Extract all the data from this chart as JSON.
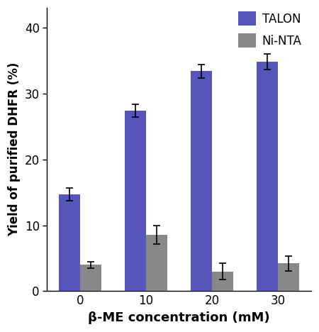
{
  "categories": [
    0,
    10,
    20,
    30
  ],
  "talon_values": [
    14.7,
    27.4,
    33.4,
    34.8
  ],
  "talon_errors": [
    1.0,
    1.0,
    1.0,
    1.2
  ],
  "ninta_values": [
    4.0,
    8.6,
    3.0,
    4.2
  ],
  "ninta_errors": [
    0.5,
    1.4,
    1.2,
    1.1
  ],
  "talon_color": "#5555BB",
  "ninta_color": "#888888",
  "ylabel": "Yield of purified DHFR (%)",
  "xlabel": "β-ME concentration (mM)",
  "ylim": [
    0,
    43
  ],
  "yticks": [
    0,
    10,
    20,
    30,
    40
  ],
  "legend_labels": [
    "TALON",
    "Ni-NTA"
  ],
  "bar_width": 0.32,
  "group_positions": [
    0,
    1,
    2,
    3
  ],
  "xtick_labels": [
    "0",
    "10",
    "20",
    "30"
  ],
  "bg_color": "#ffffff"
}
